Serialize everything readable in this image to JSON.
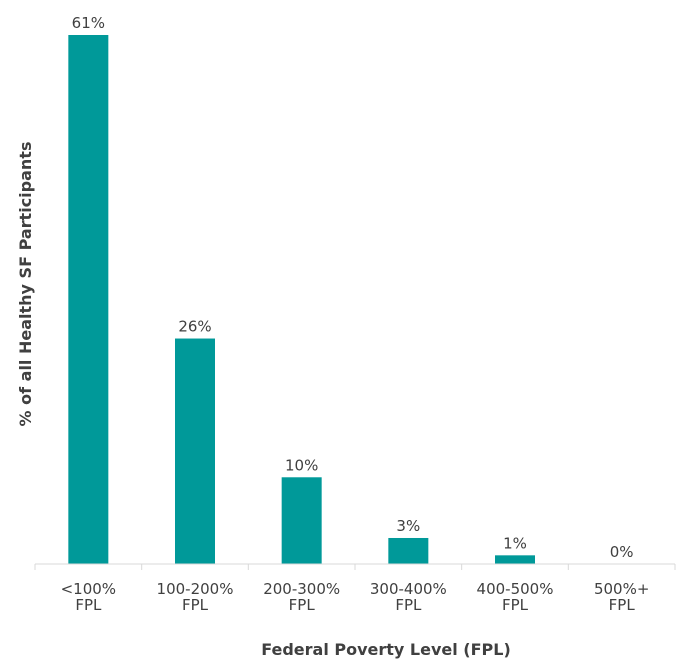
{
  "chart_data": {
    "type": "bar",
    "categories": [
      [
        "<100%",
        "FPL"
      ],
      [
        "100-200%",
        "FPL"
      ],
      [
        "200-300%",
        "FPL"
      ],
      [
        "300-400%",
        "FPL"
      ],
      [
        "400-500%",
        "FPL"
      ],
      [
        "500%+",
        "FPL"
      ]
    ],
    "values": [
      61,
      26,
      10,
      3,
      1,
      0
    ],
    "data_labels": [
      "61%",
      "26%",
      "10%",
      "3%",
      "1%",
      "0%"
    ],
    "title": "",
    "xlabel": "Federal Poverty Level (FPL)",
    "ylabel": "% of all Healthy SF Participants",
    "ylim": [
      0,
      61
    ],
    "grid": false,
    "legend": "none",
    "bar_color": "#009999",
    "axis_color": "#d9d9d9",
    "text_color": "#404040"
  }
}
